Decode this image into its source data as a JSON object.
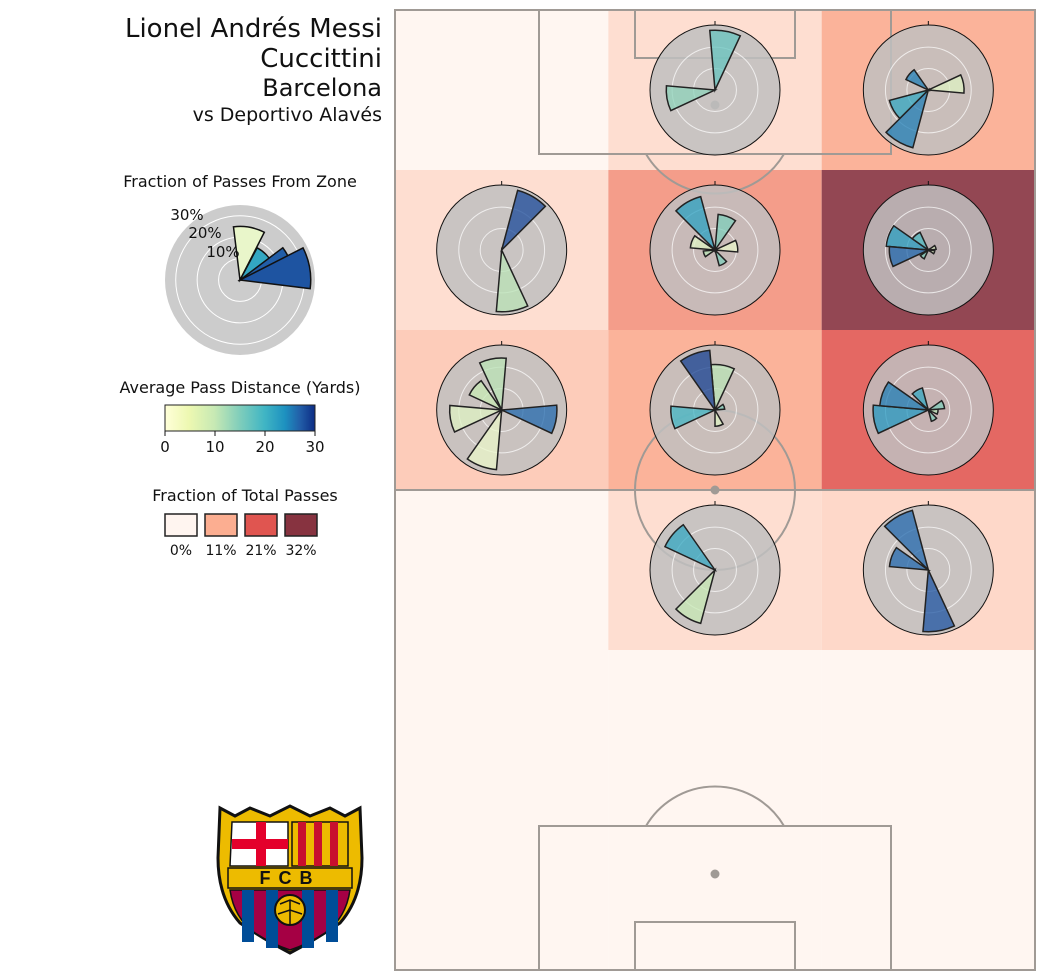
{
  "header": {
    "player": "Lionel Andrés Messi Cuccittini",
    "team": "Barcelona",
    "opponent": "vs Deportivo Alavés"
  },
  "colors": {
    "polar_background": "#c0c0c0",
    "pitch_lines": "#a09a95",
    "reds_scale": [
      "#fff5f0",
      "#fcae91",
      "#e05550",
      "#873340"
    ],
    "ylgnbu_scale": [
      "#ffffd9",
      "#c7e9b4",
      "#7fcdbb",
      "#41b6c4",
      "#1d91c0",
      "#225ea8",
      "#0c2c84"
    ]
  },
  "legend_zone": {
    "title": "Fraction of Passes From Zone",
    "ring_labels": [
      "10%",
      "20%",
      "30%"
    ],
    "ring_values": [
      10,
      20,
      30
    ],
    "max_radius": 35,
    "wedges": [
      {
        "angle_deg": 80,
        "fraction": 25,
        "distance": 2
      },
      {
        "angle_deg": 45,
        "fraction": 17,
        "distance": 17
      },
      {
        "angle_deg": 20,
        "fraction": 25,
        "distance": 25
      },
      {
        "angle_deg": 10,
        "fraction": 33,
        "distance": 26
      }
    ]
  },
  "legend_distance": {
    "title": "Average Pass Distance (Yards)",
    "ticks": [
      "0",
      "10",
      "20",
      "30"
    ],
    "range": [
      0,
      30
    ]
  },
  "legend_total": {
    "title": "Fraction of Total Passes",
    "labels": [
      "0%",
      "11%",
      "21%",
      "32%"
    ],
    "colors": [
      "#fff5f0",
      "#fcae91",
      "#e05550",
      "#873340"
    ]
  },
  "logo": {
    "text": "FCB",
    "name": "fc-barcelona-crest"
  },
  "chart_data": {
    "type": "polar-zone-grid",
    "zones_note": "attacking direction is up; 3 columns x 6 rows",
    "zones": [
      {
        "row": 0,
        "col": 0,
        "total_fraction": 0.0,
        "roses": []
      },
      {
        "row": 0,
        "col": 1,
        "total_fraction": 0.04,
        "roses": [
          {
            "angle_deg": 80,
            "fraction": 0.92,
            "distance": 12
          },
          {
            "angle_deg": 190,
            "fraction": 0.75,
            "distance": 9
          }
        ]
      },
      {
        "row": 0,
        "col": 2,
        "total_fraction": 0.11,
        "roses": [
          {
            "angle_deg": 10,
            "fraction": 0.55,
            "distance": 3
          },
          {
            "angle_deg": 140,
            "fraction": 0.38,
            "distance": 22
          },
          {
            "angle_deg": 210,
            "fraction": 0.62,
            "distance": 17
          },
          {
            "angle_deg": 240,
            "fraction": 0.92,
            "distance": 22
          }
        ]
      },
      {
        "row": 1,
        "col": 0,
        "total_fraction": 0.04,
        "roses": [
          {
            "angle_deg": 60,
            "fraction": 0.95,
            "distance": 27
          },
          {
            "angle_deg": 280,
            "fraction": 0.95,
            "distance": 6
          }
        ]
      },
      {
        "row": 1,
        "col": 1,
        "total_fraction": 0.14,
        "roses": [
          {
            "angle_deg": 70,
            "fraction": 0.55,
            "distance": 10
          },
          {
            "angle_deg": 120,
            "fraction": 0.85,
            "distance": 18
          },
          {
            "angle_deg": 160,
            "fraction": 0.38,
            "distance": 3
          },
          {
            "angle_deg": 10,
            "fraction": 0.35,
            "distance": 2
          },
          {
            "angle_deg": 300,
            "fraction": 0.25,
            "distance": 10
          },
          {
            "angle_deg": 200,
            "fraction": 0.18,
            "distance": 6
          }
        ]
      },
      {
        "row": 1,
        "col": 2,
        "total_fraction": 0.32,
        "roses": [
          {
            "angle_deg": 160,
            "fraction": 0.65,
            "distance": 18
          },
          {
            "angle_deg": 190,
            "fraction": 0.6,
            "distance": 24
          },
          {
            "angle_deg": 130,
            "fraction": 0.3,
            "distance": 14
          },
          {
            "angle_deg": 20,
            "fraction": 0.12,
            "distance": 3
          },
          {
            "angle_deg": 340,
            "fraction": 0.1,
            "distance": 3
          },
          {
            "angle_deg": 230,
            "fraction": 0.15,
            "distance": 10
          }
        ]
      },
      {
        "row": 2,
        "col": 0,
        "total_fraction": 0.07,
        "roses": [
          {
            "angle_deg": 100,
            "fraction": 0.8,
            "distance": 6
          },
          {
            "angle_deg": 190,
            "fraction": 0.8,
            "distance": 3
          },
          {
            "angle_deg": 350,
            "fraction": 0.85,
            "distance": 24
          },
          {
            "angle_deg": 250,
            "fraction": 0.92,
            "distance": 2
          },
          {
            "angle_deg": 140,
            "fraction": 0.55,
            "distance": 5
          }
        ]
      },
      {
        "row": 2,
        "col": 1,
        "total_fraction": 0.11,
        "roses": [
          {
            "angle_deg": 80,
            "fraction": 0.7,
            "distance": 6
          },
          {
            "angle_deg": 110,
            "fraction": 0.92,
            "distance": 28
          },
          {
            "angle_deg": 190,
            "fraction": 0.68,
            "distance": 15
          },
          {
            "angle_deg": 285,
            "fraction": 0.25,
            "distance": 3
          },
          {
            "angle_deg": 20,
            "fraction": 0.15,
            "distance": 10
          }
        ]
      },
      {
        "row": 2,
        "col": 2,
        "total_fraction": 0.21,
        "roses": [
          {
            "angle_deg": 190,
            "fraction": 0.85,
            "distance": 19
          },
          {
            "angle_deg": 160,
            "fraction": 0.75,
            "distance": 22
          },
          {
            "angle_deg": 120,
            "fraction": 0.35,
            "distance": 17
          },
          {
            "angle_deg": 20,
            "fraction": 0.25,
            "distance": 10
          },
          {
            "angle_deg": 300,
            "fraction": 0.18,
            "distance": 10
          },
          {
            "angle_deg": 350,
            "fraction": 0.15,
            "distance": 6
          }
        ]
      },
      {
        "row": 3,
        "col": 0,
        "total_fraction": 0.0,
        "roses": []
      },
      {
        "row": 3,
        "col": 1,
        "total_fraction": 0.04,
        "roses": [
          {
            "angle_deg": 140,
            "fraction": 0.85,
            "distance": 17
          },
          {
            "angle_deg": 240,
            "fraction": 0.85,
            "distance": 5
          }
        ]
      },
      {
        "row": 3,
        "col": 2,
        "total_fraction": 0.05,
        "roses": [
          {
            "angle_deg": 120,
            "fraction": 0.95,
            "distance": 24
          },
          {
            "angle_deg": 160,
            "fraction": 0.6,
            "distance": 24
          },
          {
            "angle_deg": 280,
            "fraction": 0.95,
            "distance": 26
          }
        ]
      },
      {
        "row": 4,
        "col": 0,
        "total_fraction": 0.0,
        "roses": []
      },
      {
        "row": 4,
        "col": 1,
        "total_fraction": 0.0,
        "roses": []
      },
      {
        "row": 4,
        "col": 2,
        "total_fraction": 0.0,
        "roses": []
      },
      {
        "row": 5,
        "col": 0,
        "total_fraction": 0.0,
        "roses": []
      },
      {
        "row": 5,
        "col": 1,
        "total_fraction": 0.0,
        "roses": []
      },
      {
        "row": 5,
        "col": 2,
        "total_fraction": 0.0,
        "roses": []
      }
    ],
    "distance_range": [
      0,
      30
    ],
    "total_fraction_range": [
      0,
      0.32
    ]
  }
}
